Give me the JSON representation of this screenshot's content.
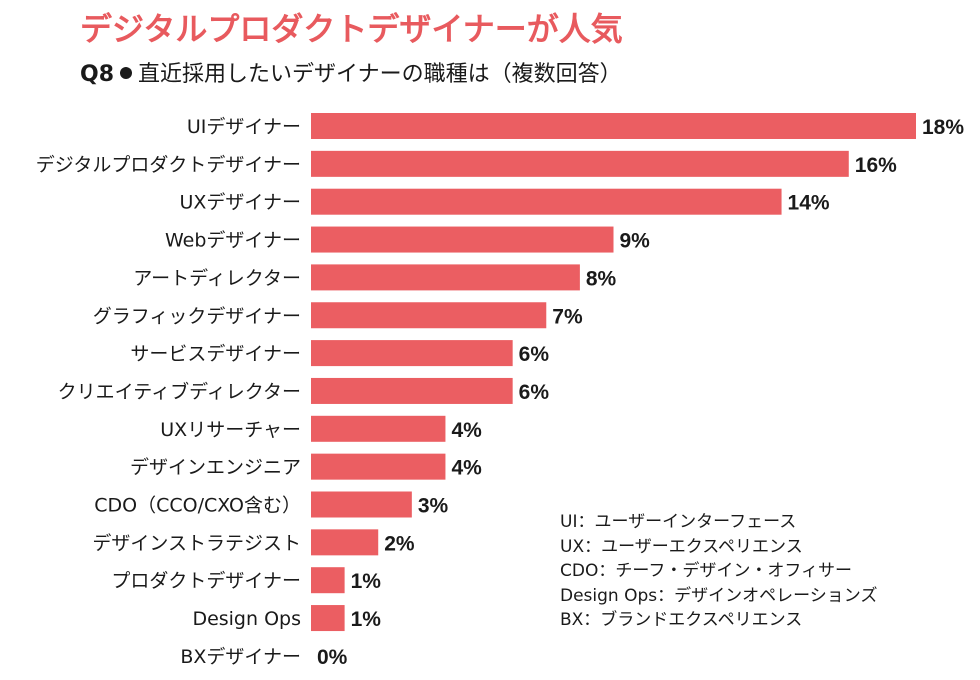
{
  "title": "デジタルプロダクトデザイナーが人気",
  "question": {
    "number": "Q8",
    "text": "直近採用したいデザイナーの職種は（複数回答）"
  },
  "legend_notes": [
    "UI：ユーザーインターフェース",
    "UX：ユーザーエクスペリエンス",
    "CDO：チーフ・デザイン・オフィサー",
    "Design Ops：デザインオペレーションズ",
    "BX：ブランドエクスペリエンス"
  ],
  "colors": {
    "bar": "#eb5e62",
    "title": "#e85a5e"
  },
  "chart_data": {
    "type": "bar",
    "orientation": "horizontal",
    "categories": [
      "UIデザイナー",
      "デジタルプロダクトデザイナー",
      "UXデザイナー",
      "Webデザイナー",
      "アートディレクター",
      "グラフィックデザイナー",
      "サービスデザイナー",
      "クリエイティブディレクター",
      "UXリサーチャー",
      "デザインエンジニア",
      "CDO（CCO/CXO含む）",
      "デザインストラテジスト",
      "プロダクトデザイナー",
      "Design Ops",
      "BXデザイナー"
    ],
    "values": [
      18,
      16,
      14,
      9,
      8,
      7,
      6,
      6,
      4,
      4,
      3,
      2,
      1,
      1,
      0
    ],
    "value_labels": [
      "18%",
      "16%",
      "14%",
      "9%",
      "8%",
      "7%",
      "6%",
      "6%",
      "4%",
      "4%",
      "3%",
      "2%",
      "1%",
      "1%",
      "0%"
    ],
    "xlim": [
      0,
      18
    ],
    "grid": false
  }
}
